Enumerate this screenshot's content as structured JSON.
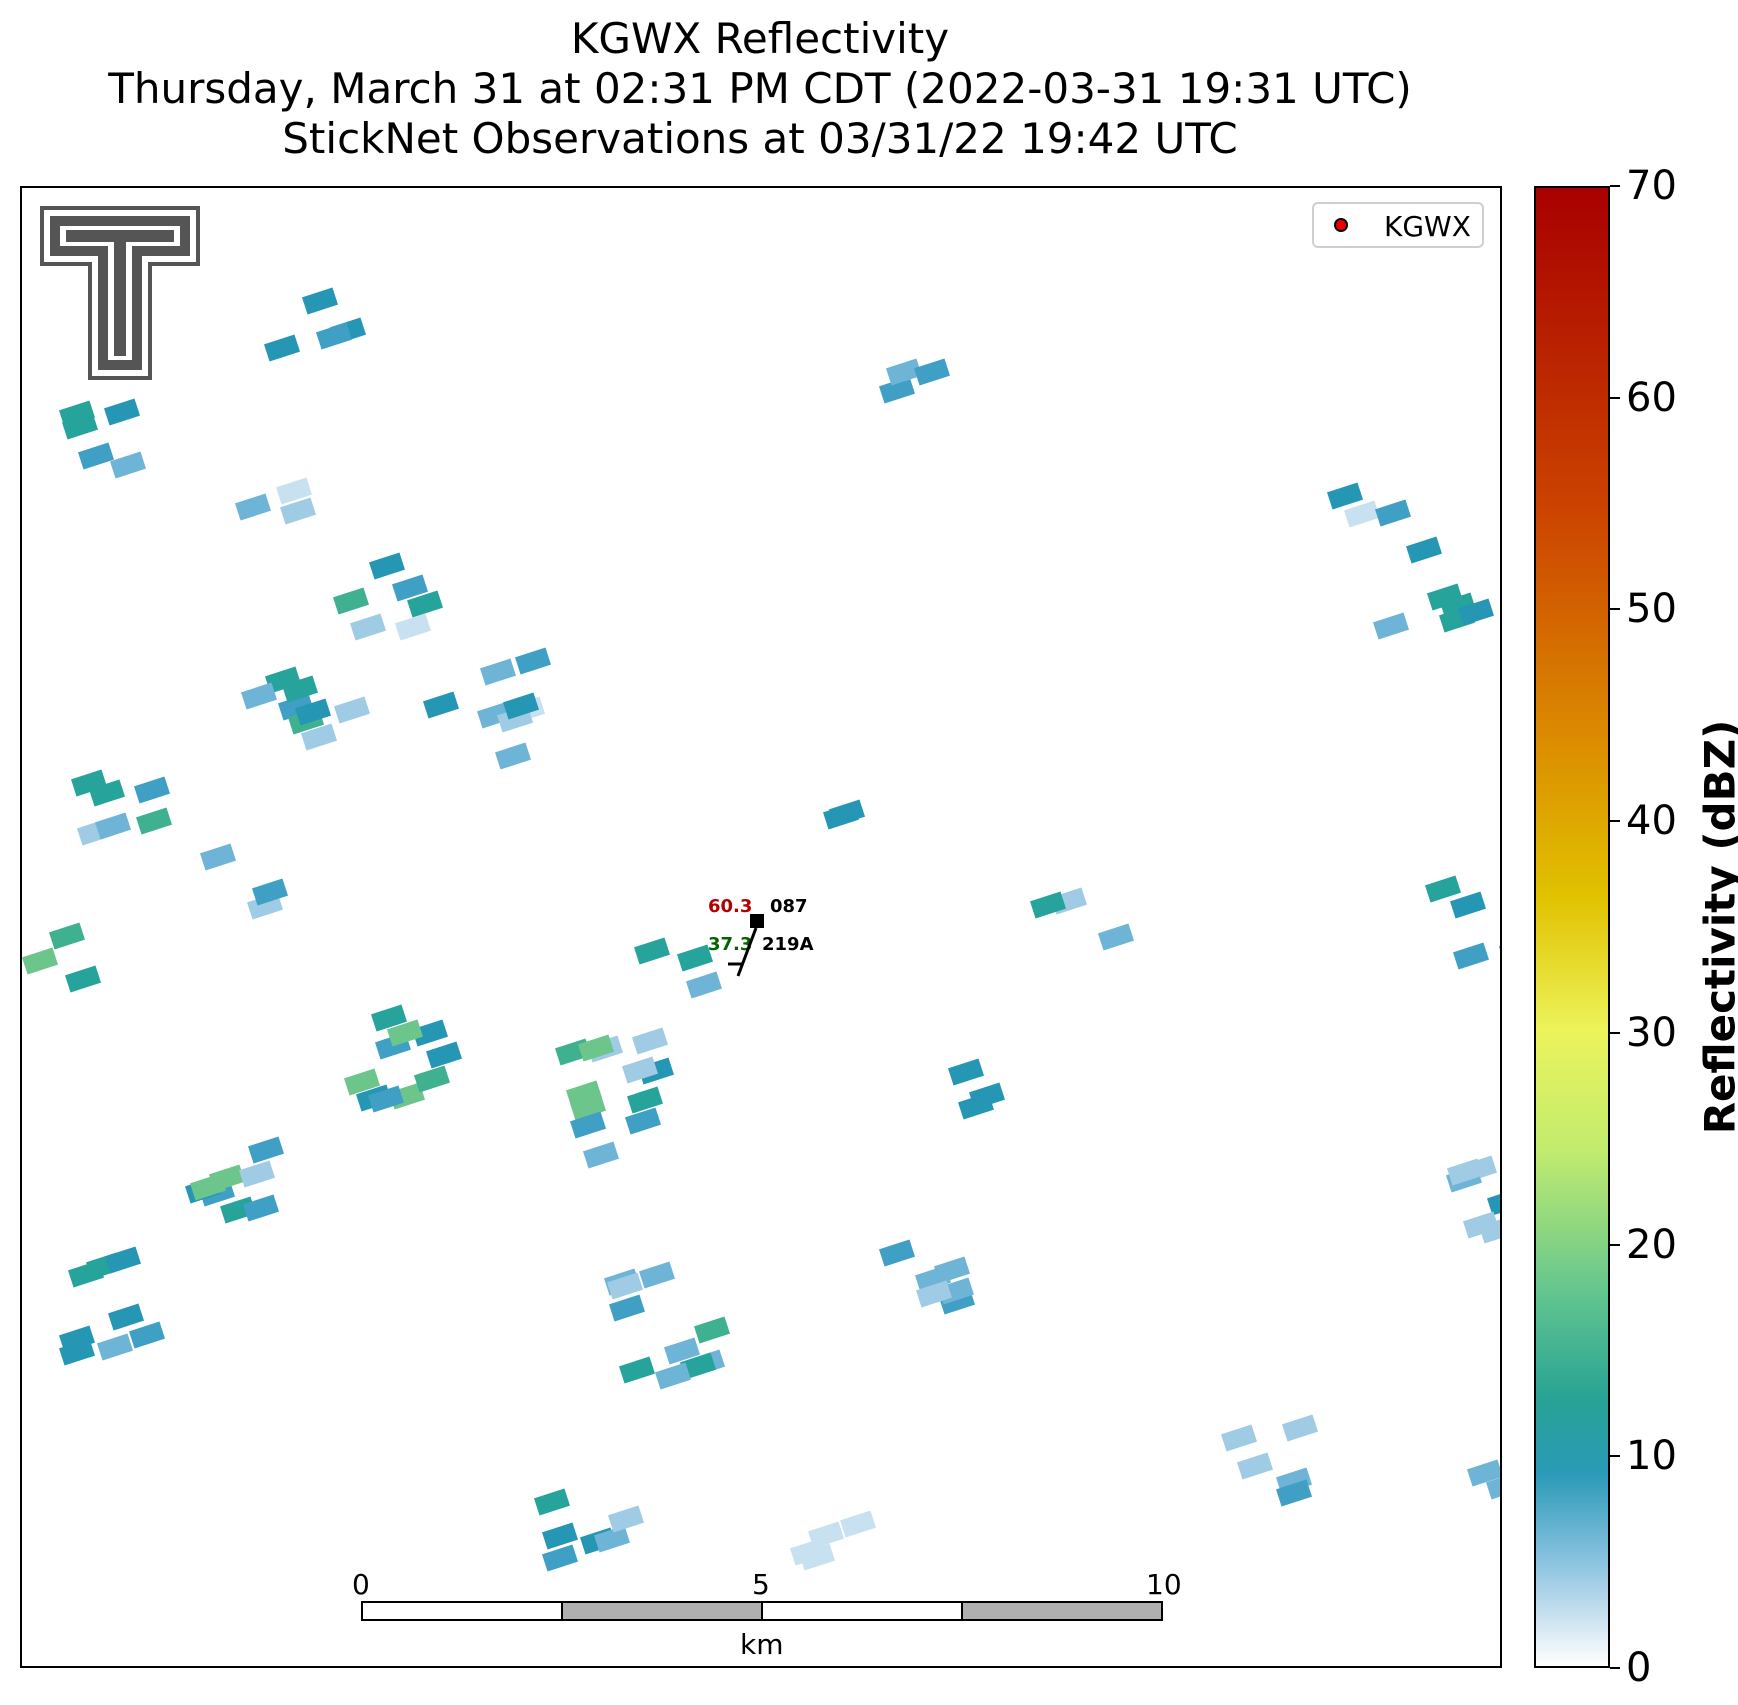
{
  "title": {
    "line1": "KGWX Reflectivity",
    "line2": "Thursday, March 31 at 02:31 PM CDT (2022-03-31 19:31 UTC)",
    "line3": "StickNet Observations at 03/31/22 19:42 UTC"
  },
  "legend": {
    "label": "KGWX",
    "marker_color": "#ee0000"
  },
  "station": {
    "temperature": "60.3",
    "dewpoint": "37.3",
    "direction": "087",
    "id": "219A",
    "temp_color": "#b30000",
    "dew_color": "#006400"
  },
  "colorbar": {
    "label": "Reflectivity (dBZ)",
    "ticks": [
      "0",
      "10",
      "20",
      "30",
      "40",
      "50",
      "60",
      "70"
    ],
    "range": [
      0,
      70
    ]
  },
  "scalebar": {
    "ticks": [
      "0",
      "5",
      "10"
    ],
    "unit": "km"
  },
  "logo": {
    "name": "texas-tech-double-t-logo",
    "color": "#555555"
  }
}
